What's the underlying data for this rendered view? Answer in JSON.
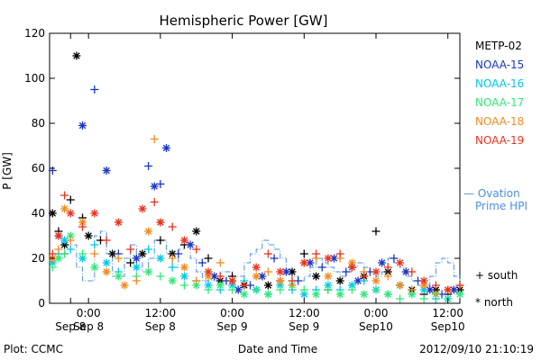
{
  "chart_data": {
    "type": "scatter",
    "title": "Hemispheric Power [GW]",
    "xlabel": "Date and Time",
    "ylabel": "P [GW]",
    "footer_left": "Plot: CCMC",
    "footer_right": "2012/09/10 21:10:19",
    "x_unit": "hours from 2012-09-08 00:00 UTC",
    "xlim": [
      -6.5,
      62
    ],
    "ylim": [
      0,
      120
    ],
    "y_ticks": [
      0,
      20,
      40,
      60,
      80,
      100,
      120
    ],
    "x_ticks": [
      {
        "x": -3,
        "line1": "",
        "line2": "Sep 8"
      },
      {
        "x": 0,
        "line1": "0:00",
        "line2": "Sep 8"
      },
      {
        "x": 12,
        "line1": "12:00",
        "line2": "Sep 8"
      },
      {
        "x": 24,
        "line1": "0:00",
        "line2": "Sep 9"
      },
      {
        "x": 36,
        "line1": "12:00",
        "line2": "Sep 9"
      },
      {
        "x": 48,
        "line1": "0:00",
        "line2": "Sep10"
      },
      {
        "x": 60,
        "line1": "12:00",
        "line2": "Sep10"
      }
    ],
    "series": [
      {
        "name": "METP-02",
        "color": "#000000",
        "points": [
          [
            -6,
            40
          ],
          [
            -5,
            32
          ],
          [
            -4,
            26
          ],
          [
            -3,
            46
          ],
          [
            -2,
            110
          ],
          [
            -1,
            38
          ],
          [
            0,
            30
          ],
          [
            2,
            28
          ],
          [
            4,
            22
          ],
          [
            7,
            18
          ],
          [
            9,
            22
          ],
          [
            12,
            28
          ],
          [
            14,
            22
          ],
          [
            16,
            26
          ],
          [
            18,
            32
          ],
          [
            20,
            20
          ],
          [
            22,
            10
          ],
          [
            24,
            12
          ],
          [
            26,
            8
          ],
          [
            28,
            6
          ],
          [
            30,
            8
          ],
          [
            32,
            10
          ],
          [
            34,
            14
          ],
          [
            36,
            22
          ],
          [
            38,
            12
          ],
          [
            40,
            6
          ],
          [
            42,
            10
          ],
          [
            44,
            16
          ],
          [
            46,
            12
          ],
          [
            48,
            32
          ],
          [
            50,
            14
          ],
          [
            52,
            8
          ],
          [
            54,
            6
          ],
          [
            56,
            4
          ],
          [
            58,
            6
          ],
          [
            60,
            4
          ],
          [
            62,
            6
          ]
        ]
      },
      {
        "name": "NOAA-15",
        "color": "#1a35c6",
        "points": [
          [
            -6,
            59
          ],
          [
            -5,
            30
          ],
          [
            -4,
            22
          ],
          [
            -1,
            79
          ],
          [
            1,
            95
          ],
          [
            3,
            59
          ],
          [
            5,
            22
          ],
          [
            8,
            20
          ],
          [
            10,
            61
          ],
          [
            11,
            52
          ],
          [
            12,
            53
          ],
          [
            13,
            69
          ],
          [
            15,
            22
          ],
          [
            17,
            26
          ],
          [
            19,
            18
          ],
          [
            21,
            12
          ],
          [
            23,
            10
          ],
          [
            25,
            6
          ],
          [
            27,
            8
          ],
          [
            29,
            12
          ],
          [
            31,
            20
          ],
          [
            33,
            14
          ],
          [
            35,
            10
          ],
          [
            37,
            18
          ],
          [
            39,
            16
          ],
          [
            41,
            20
          ],
          [
            43,
            14
          ],
          [
            45,
            10
          ],
          [
            47,
            14
          ],
          [
            49,
            18
          ],
          [
            51,
            20
          ],
          [
            53,
            14
          ],
          [
            55,
            10
          ],
          [
            57,
            6
          ],
          [
            59,
            4
          ],
          [
            61,
            6
          ]
        ]
      },
      {
        "name": "NOAA-16",
        "color": "#00c8e6",
        "points": [
          [
            -6,
            18
          ],
          [
            -5,
            22
          ],
          [
            -4,
            28
          ],
          [
            -3,
            24
          ],
          [
            -1,
            20
          ],
          [
            1,
            26
          ],
          [
            3,
            18
          ],
          [
            5,
            14
          ],
          [
            8,
            16
          ],
          [
            10,
            24
          ],
          [
            12,
            20
          ],
          [
            14,
            16
          ],
          [
            16,
            12
          ],
          [
            18,
            10
          ],
          [
            20,
            8
          ],
          [
            22,
            6
          ],
          [
            24,
            8
          ],
          [
            26,
            10
          ],
          [
            28,
            6
          ],
          [
            30,
            4
          ],
          [
            32,
            8
          ],
          [
            34,
            6
          ],
          [
            36,
            4
          ],
          [
            38,
            6
          ],
          [
            40,
            8
          ],
          [
            42,
            6
          ],
          [
            44,
            8
          ],
          [
            46,
            10
          ],
          [
            48,
            6
          ],
          [
            50,
            4
          ],
          [
            52,
            8
          ],
          [
            54,
            4
          ],
          [
            56,
            6
          ],
          [
            58,
            2
          ],
          [
            60,
            2
          ],
          [
            62,
            4
          ]
        ]
      },
      {
        "name": "NOAA-17",
        "color": "#30e87a",
        "points": [
          [
            -6,
            16
          ],
          [
            -5,
            20
          ],
          [
            -4,
            22
          ],
          [
            -3,
            30
          ],
          [
            -1,
            22
          ],
          [
            1,
            16
          ],
          [
            3,
            14
          ],
          [
            5,
            12
          ],
          [
            8,
            12
          ],
          [
            10,
            14
          ],
          [
            12,
            12
          ],
          [
            14,
            10
          ],
          [
            16,
            8
          ],
          [
            18,
            8
          ],
          [
            20,
            6
          ],
          [
            22,
            8
          ],
          [
            24,
            6
          ],
          [
            26,
            4
          ],
          [
            28,
            6
          ],
          [
            30,
            4
          ],
          [
            32,
            6
          ],
          [
            34,
            8
          ],
          [
            36,
            6
          ],
          [
            38,
            4
          ],
          [
            40,
            6
          ],
          [
            42,
            4
          ],
          [
            44,
            6
          ],
          [
            46,
            4
          ],
          [
            48,
            6
          ],
          [
            50,
            4
          ],
          [
            52,
            2
          ],
          [
            54,
            4
          ],
          [
            56,
            2
          ],
          [
            58,
            4
          ],
          [
            60,
            2
          ],
          [
            62,
            4
          ]
        ]
      },
      {
        "name": "NOAA-18",
        "color": "#f08a1e",
        "points": [
          [
            -6,
            20
          ],
          [
            -5,
            24
          ],
          [
            -4,
            42
          ],
          [
            -3,
            28
          ],
          [
            -1,
            36
          ],
          [
            1,
            22
          ],
          [
            3,
            14
          ],
          [
            5,
            20
          ],
          [
            6,
            8
          ],
          [
            8,
            10
          ],
          [
            10,
            32
          ],
          [
            11,
            73
          ],
          [
            12,
            36
          ],
          [
            14,
            20
          ],
          [
            16,
            16
          ],
          [
            18,
            10
          ],
          [
            20,
            12
          ],
          [
            22,
            18
          ],
          [
            24,
            10
          ],
          [
            26,
            8
          ],
          [
            28,
            12
          ],
          [
            30,
            14
          ],
          [
            32,
            10
          ],
          [
            34,
            8
          ],
          [
            36,
            18
          ],
          [
            38,
            20
          ],
          [
            40,
            12
          ],
          [
            42,
            20
          ],
          [
            44,
            18
          ],
          [
            46,
            14
          ],
          [
            48,
            10
          ],
          [
            50,
            12
          ],
          [
            52,
            8
          ],
          [
            54,
            6
          ],
          [
            56,
            8
          ],
          [
            58,
            4
          ],
          [
            60,
            6
          ],
          [
            62,
            8
          ]
        ]
      },
      {
        "name": "NOAA-19",
        "color": "#e8321e",
        "points": [
          [
            -6,
            22
          ],
          [
            -5,
            30
          ],
          [
            -4,
            48
          ],
          [
            -3,
            40
          ],
          [
            -1,
            34
          ],
          [
            1,
            40
          ],
          [
            3,
            28
          ],
          [
            5,
            36
          ],
          [
            7,
            24
          ],
          [
            9,
            42
          ],
          [
            11,
            45
          ],
          [
            12,
            36
          ],
          [
            14,
            34
          ],
          [
            16,
            28
          ],
          [
            18,
            24
          ],
          [
            20,
            14
          ],
          [
            22,
            12
          ],
          [
            24,
            10
          ],
          [
            26,
            8
          ],
          [
            28,
            16
          ],
          [
            30,
            22
          ],
          [
            32,
            14
          ],
          [
            34,
            10
          ],
          [
            36,
            18
          ],
          [
            38,
            22
          ],
          [
            40,
            20
          ],
          [
            42,
            22
          ],
          [
            44,
            16
          ],
          [
            46,
            12
          ],
          [
            48,
            14
          ],
          [
            50,
            16
          ],
          [
            52,
            18
          ],
          [
            54,
            14
          ],
          [
            56,
            10
          ],
          [
            58,
            8
          ],
          [
            60,
            6
          ],
          [
            62,
            8
          ]
        ]
      }
    ],
    "ovation": {
      "name": "Ovation Prime HPI",
      "label_lines": [
        "— Ovation",
        "Prime HPI"
      ],
      "color": "#4d8fe0",
      "points": [
        [
          -6,
          22
        ],
        [
          -5,
          20
        ],
        [
          -4,
          26
        ],
        [
          -3,
          26
        ],
        [
          -2,
          16
        ],
        [
          -1,
          10
        ],
        [
          0,
          10
        ],
        [
          1,
          30
        ],
        [
          2,
          32
        ],
        [
          3,
          22
        ],
        [
          4,
          12
        ],
        [
          5,
          12
        ],
        [
          6,
          20
        ],
        [
          7,
          26
        ],
        [
          8,
          18
        ],
        [
          9,
          14
        ],
        [
          10,
          20
        ],
        [
          11,
          28
        ],
        [
          12,
          28
        ],
        [
          13,
          22
        ],
        [
          14,
          16
        ],
        [
          15,
          24
        ],
        [
          16,
          26
        ],
        [
          17,
          20
        ],
        [
          18,
          14
        ],
        [
          19,
          10
        ],
        [
          20,
          10
        ],
        [
          21,
          12
        ],
        [
          22,
          14
        ],
        [
          23,
          14
        ],
        [
          24,
          12
        ],
        [
          25,
          12
        ],
        [
          26,
          18
        ],
        [
          27,
          22
        ],
        [
          28,
          24
        ],
        [
          29,
          28
        ],
        [
          30,
          26
        ],
        [
          31,
          24
        ],
        [
          32,
          20
        ],
        [
          33,
          14
        ],
        [
          34,
          12
        ],
        [
          35,
          10
        ],
        [
          36,
          12
        ],
        [
          37,
          16
        ],
        [
          38,
          20
        ],
        [
          39,
          18
        ],
        [
          40,
          16
        ],
        [
          41,
          14
        ],
        [
          42,
          12
        ],
        [
          43,
          14
        ],
        [
          44,
          16
        ],
        [
          45,
          18
        ],
        [
          46,
          16
        ],
        [
          47,
          14
        ],
        [
          48,
          12
        ],
        [
          49,
          14
        ],
        [
          50,
          20
        ],
        [
          51,
          18
        ],
        [
          52,
          16
        ],
        [
          53,
          12
        ],
        [
          54,
          10
        ],
        [
          55,
          8
        ],
        [
          56,
          8
        ],
        [
          57,
          12
        ],
        [
          58,
          18
        ],
        [
          59,
          20
        ],
        [
          60,
          18
        ],
        [
          61,
          12
        ],
        [
          62,
          10
        ]
      ]
    },
    "legend": {
      "placement": "right",
      "items": [
        {
          "label": "METP-02",
          "color": "#000000"
        },
        {
          "label": "NOAA-15",
          "color": "#1a35c6"
        },
        {
          "label": "NOAA-16",
          "color": "#00c8e6"
        },
        {
          "label": "NOAA-17",
          "color": "#30e87a"
        },
        {
          "label": "NOAA-18",
          "color": "#f08a1e"
        },
        {
          "label": "NOAA-19",
          "color": "#e8321e"
        }
      ],
      "symbols": [
        {
          "marker": "+",
          "label": "south"
        },
        {
          "marker": "*",
          "label": "north"
        }
      ]
    }
  }
}
